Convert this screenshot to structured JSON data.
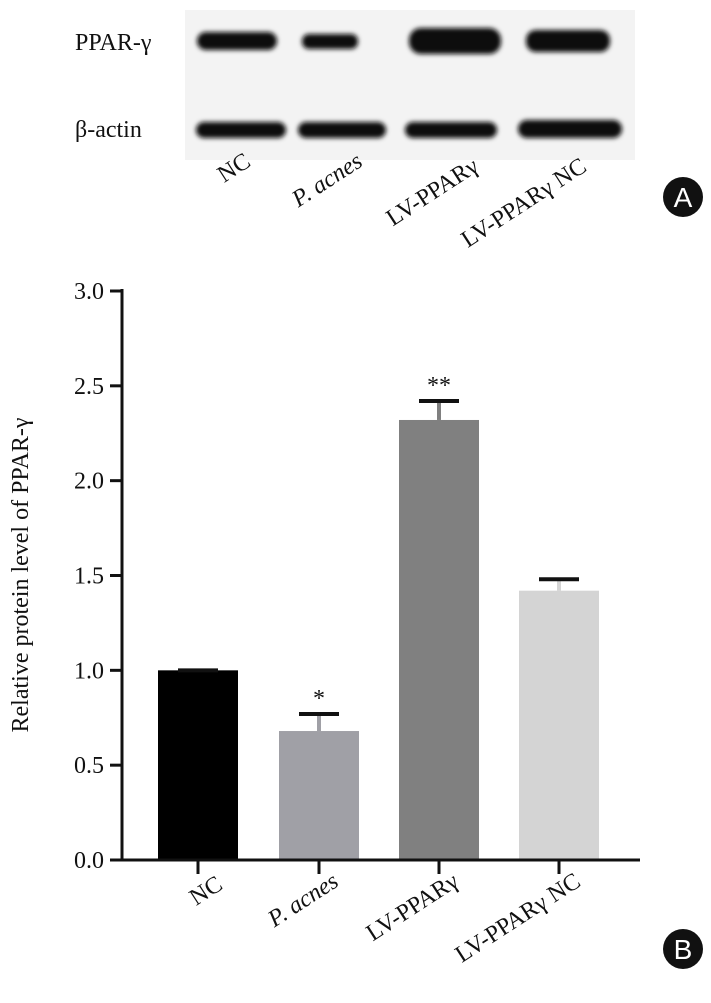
{
  "panels": [
    "A",
    "B"
  ],
  "blot": {
    "rows": [
      "PPAR-γ",
      "β-actin"
    ],
    "lanes": [
      "NC",
      "P. acnes",
      "LV-PPARγ",
      "LV-PPARγ NC"
    ]
  },
  "chart_data": {
    "type": "bar",
    "ylabel": "Relative protein level of PPAR-γ",
    "categories": [
      "NC",
      "P. acnes",
      "LV-PPARγ",
      "LV-PPARγ NC"
    ],
    "values": [
      1.0,
      0.68,
      2.32,
      1.42
    ],
    "errors": [
      0,
      0.09,
      0.1,
      0.06
    ],
    "significance": [
      null,
      "*",
      "**",
      null
    ],
    "colors": [
      "#000000",
      "#a0a0a6",
      "#808080",
      "#d4d4d4"
    ],
    "ylim": [
      0,
      3
    ],
    "yticks": [
      {
        "value": 0,
        "label": "0.0"
      },
      {
        "value": 0.5,
        "label": "0.5"
      },
      {
        "value": 1,
        "label": "1.0"
      },
      {
        "value": 1.5,
        "label": "1.5"
      },
      {
        "value": 2,
        "label": "2.0"
      },
      {
        "value": 2.5,
        "label": "2.5"
      },
      {
        "value": 3,
        "label": "3.0"
      }
    ]
  }
}
